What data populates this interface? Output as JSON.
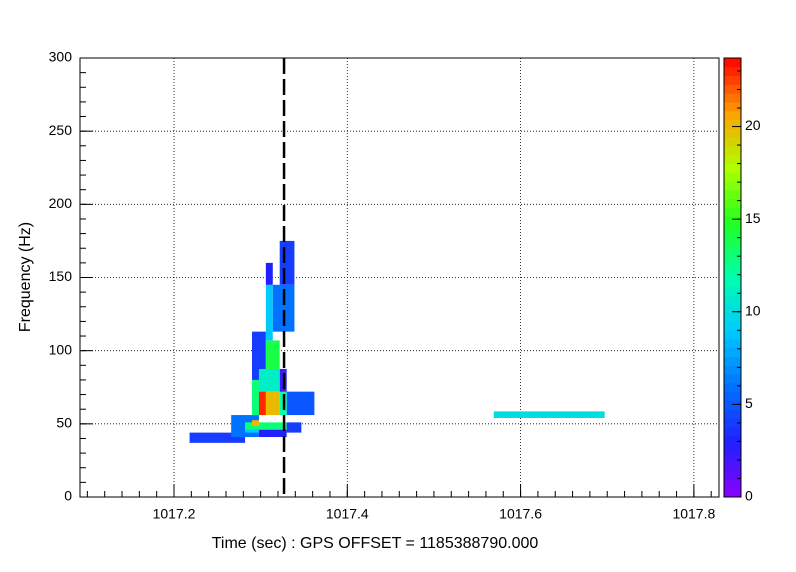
{
  "chart_data": {
    "type": "heatmap",
    "xlabel": "Time (sec) : GPS OFFSET = 1185388790.000",
    "ylabel": "Frequency (Hz)",
    "xlim": [
      1017.0915,
      1017.829
    ],
    "xticks": [
      1017.2,
      1017.4,
      1017.6,
      1017.8
    ],
    "ylim": [
      0,
      300
    ],
    "yticks": [
      0,
      50,
      100,
      150,
      200,
      250,
      300
    ],
    "zlim": [
      0,
      23.7
    ],
    "zticks": [
      0,
      5,
      10,
      15,
      20
    ],
    "grid": true,
    "colormap": [
      "#8a00ff",
      "#2020ff",
      "#0070ff",
      "#00c8ff",
      "#00ffb0",
      "#20ff20",
      "#b0ff00",
      "#ffa000",
      "#ff0000"
    ],
    "vertical_line": 1017.327,
    "tiles": [
      {
        "x0": 1017.218,
        "x1": 1017.282,
        "y0": 37,
        "y1": 44,
        "value": 4
      },
      {
        "x0": 1017.266,
        "x1": 1017.298,
        "y0": 41,
        "y1": 56,
        "value": 6
      },
      {
        "x0": 1017.282,
        "x1": 1017.298,
        "y0": 44,
        "y1": 51,
        "value": 9
      },
      {
        "x0": 1017.282,
        "x1": 1017.33,
        "y0": 46,
        "y1": 51,
        "value": 13
      },
      {
        "x0": 1017.29,
        "x1": 1017.298,
        "y0": 48.5,
        "y1": 52.5,
        "value": 20
      },
      {
        "x0": 1017.298,
        "x1": 1017.33,
        "y0": 41,
        "y1": 46,
        "value": 3
      },
      {
        "x0": 1017.33,
        "x1": 1017.347,
        "y0": 44,
        "y1": 51,
        "value": 4
      },
      {
        "x0": 1017.33,
        "x1": 1017.362,
        "y0": 56,
        "y1": 72,
        "value": 5
      },
      {
        "x0": 1017.29,
        "x1": 1017.306,
        "y0": 56,
        "y1": 80,
        "value": 13
      },
      {
        "x0": 1017.298,
        "x1": 1017.306,
        "y0": 56,
        "y1": 72,
        "value": 23
      },
      {
        "x0": 1017.306,
        "x1": 1017.322,
        "y0": 56,
        "y1": 72,
        "value": 20
      },
      {
        "x0": 1017.322,
        "x1": 1017.33,
        "y0": 56,
        "y1": 87.5,
        "value": 12
      },
      {
        "x0": 1017.322,
        "x1": 1017.33,
        "y0": 72,
        "y1": 87.5,
        "value": 2
      },
      {
        "x0": 1017.29,
        "x1": 1017.306,
        "y0": 80,
        "y1": 113,
        "value": 4
      },
      {
        "x0": 1017.298,
        "x1": 1017.322,
        "y0": 72,
        "y1": 87.5,
        "value": 11
      },
      {
        "x0": 1017.306,
        "x1": 1017.322,
        "y0": 87.5,
        "y1": 107,
        "value": 14
      },
      {
        "x0": 1017.306,
        "x1": 1017.314,
        "y0": 107,
        "y1": 145,
        "value": 9
      },
      {
        "x0": 1017.306,
        "x1": 1017.314,
        "y0": 145,
        "y1": 160,
        "value": 3
      },
      {
        "x0": 1017.314,
        "x1": 1017.339,
        "y0": 113,
        "y1": 145,
        "value": 6
      },
      {
        "x0": 1017.322,
        "x1": 1017.339,
        "y0": 145,
        "y1": 175,
        "value": 4
      },
      {
        "x0": 1017.569,
        "x1": 1017.697,
        "y0": 54,
        "y1": 58.5,
        "value": 10
      }
    ]
  }
}
